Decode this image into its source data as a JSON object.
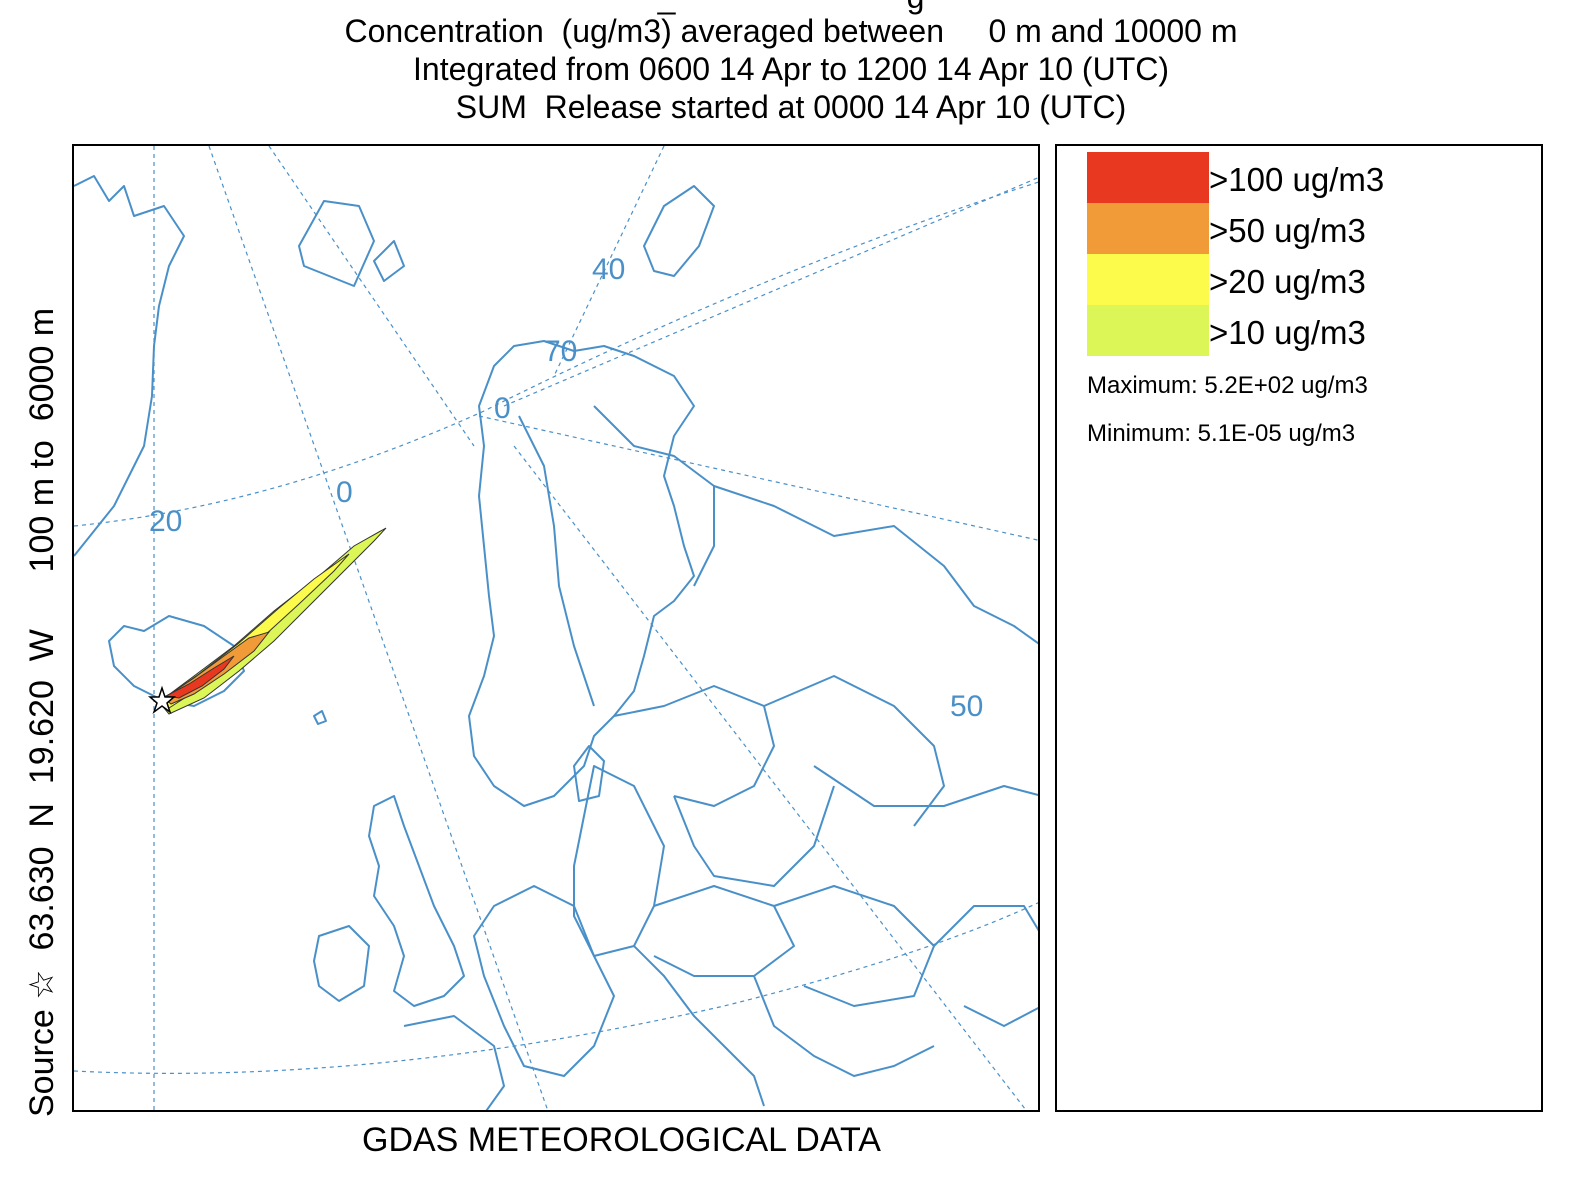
{
  "title": {
    "line0": "_                          g",
    "line1": "Concentration  (ug/m3) averaged between     0 m and 10000 m",
    "line2": "Integrated from 0600 14 Apr to 1200 14 Apr 10 (UTC)",
    "line3": "SUM  Release started at 0000 14 Apr 10 (UTC)"
  },
  "side_label": "Source ☆  63.630  N  19.620  W      100 m to  6000 m",
  "footer": "GDAS METEOROLOGICAL DATA",
  "map": {
    "graticule_labels": {
      "lon_20": "20",
      "lon_0": "0",
      "lon_40": "40",
      "lon_50": "50",
      "lat_70": "70",
      "lat_60": "0"
    },
    "coastline_color": "#4a90c8",
    "source_marker": "star-icon"
  },
  "legend": {
    "items": [
      {
        "label": ">100 ug/m3",
        "color": "#e8381f"
      },
      {
        "label": ">50 ug/m3",
        "color": "#f19a38"
      },
      {
        "label": ">20 ug/m3",
        "color": "#fcfb4b"
      },
      {
        "label": ">10 ug/m3",
        "color": "#dbf656"
      }
    ],
    "maximum": "Maximum: 5.2E+02 ug/m3",
    "minimum": "Minimum: 5.1E-05 ug/m3"
  }
}
